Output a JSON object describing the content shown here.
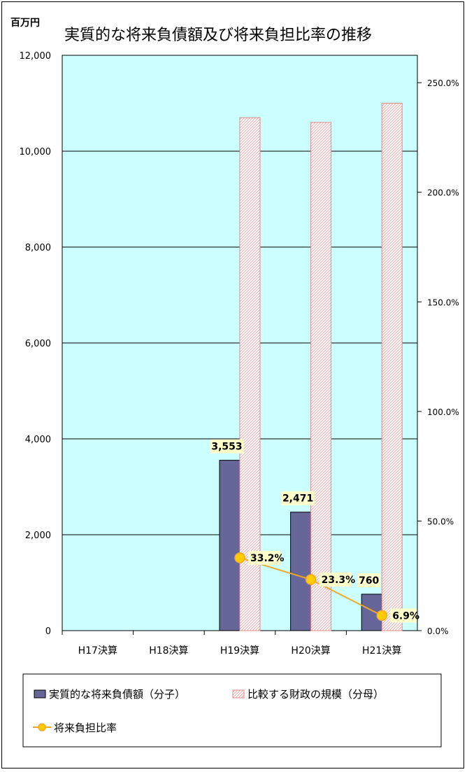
{
  "chart_data": {
    "type": "bar",
    "title": "実質的な将来負債額及び将来負担比率の推移",
    "unit_label": "百万円",
    "categories": [
      "H17決算",
      "H18決算",
      "H19決算",
      "H20決算",
      "H21決算"
    ],
    "y_left": {
      "min": 0,
      "max": 12000,
      "ticks": [
        "0",
        "2,000",
        "4,000",
        "6,000",
        "8,000",
        "10,000",
        "12,000"
      ]
    },
    "y_right": {
      "min": 0,
      "max": 262.5,
      "ticks": [
        "0.0%",
        "50.0%",
        "100.0%",
        "150.0%",
        "200.0%",
        "250.0%"
      ]
    },
    "series": [
      {
        "name": "実質的な将来負債額（分子）",
        "kind": "bar",
        "axis": "left",
        "values": [
          null,
          null,
          3553,
          2471,
          760
        ],
        "labels": [
          "",
          "",
          "3,553",
          "2,471",
          "760"
        ],
        "color": "#666699"
      },
      {
        "name": "比較する財政の規模（分母）",
        "kind": "bar-hatched",
        "axis": "left",
        "values": [
          null,
          null,
          10700,
          10600,
          11000
        ],
        "color": "#f4cccc"
      },
      {
        "name": "将来負担比率",
        "kind": "line",
        "axis": "right",
        "values": [
          null,
          null,
          33.2,
          23.3,
          6.9
        ],
        "labels": [
          "",
          "",
          "33.2%",
          "23.3%",
          "6.9%"
        ],
        "color": "#f5a623",
        "marker": "#ffcc00"
      }
    ],
    "plot_background": "#ccffff",
    "grid": true,
    "legend_position": "bottom"
  }
}
